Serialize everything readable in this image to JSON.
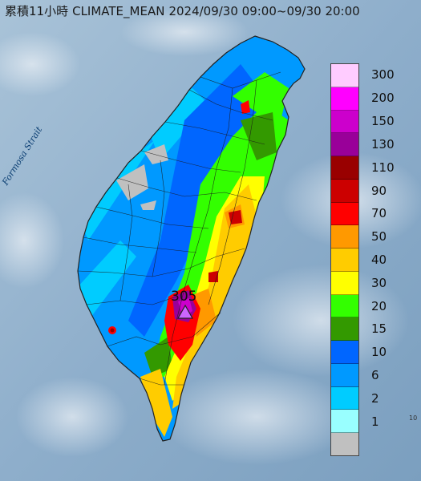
{
  "header": {
    "title_cn": "累積11小時",
    "product": "CLIMATE_MEAN",
    "period": "2024/09/30 09:00~09/30 20:00"
  },
  "map": {
    "sea_label": "Formosa Strait",
    "max_value": "305",
    "corner_tag": "10"
  },
  "legend": {
    "unit": "",
    "items": [
      {
        "label": "300",
        "color": "#ffccff"
      },
      {
        "label": "200",
        "color": "#ff00ff"
      },
      {
        "label": "150",
        "color": "#cc00cc"
      },
      {
        "label": "130",
        "color": "#990099"
      },
      {
        "label": "110",
        "color": "#990000"
      },
      {
        "label": "90",
        "color": "#cc0000"
      },
      {
        "label": "70",
        "color": "#ff0000"
      },
      {
        "label": "50",
        "color": "#ff9900"
      },
      {
        "label": "40",
        "color": "#ffcc00"
      },
      {
        "label": "30",
        "color": "#ffff00"
      },
      {
        "label": "20",
        "color": "#33ff00"
      },
      {
        "label": "15",
        "color": "#339900"
      },
      {
        "label": "10",
        "color": "#0066ff"
      },
      {
        "label": "6",
        "color": "#0099ff"
      },
      {
        "label": "2",
        "color": "#00ccff"
      },
      {
        "label": "1",
        "color": "#99ffff"
      },
      {
        "label": "",
        "color": "#c0c0c0"
      }
    ]
  }
}
